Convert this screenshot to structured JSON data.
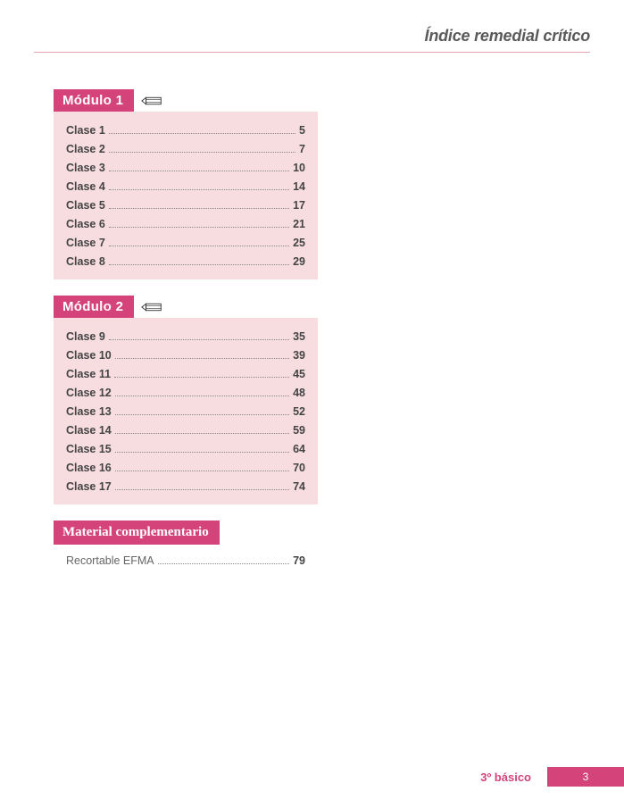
{
  "header_title": "Índice remedial crítico",
  "colors": {
    "accent": "#d4447a",
    "module_bg": "#f7dce0",
    "rule": "#e3a8b3",
    "text": "#4a4a4a",
    "header_text": "#5a5a5a"
  },
  "modules": [
    {
      "title": "Módulo 1",
      "items": [
        {
          "label": "Clase 1",
          "page": "5"
        },
        {
          "label": "Clase 2",
          "page": "7"
        },
        {
          "label": "Clase 3",
          "page": "10"
        },
        {
          "label": "Clase 4",
          "page": "14"
        },
        {
          "label": "Clase 5",
          "page": "17"
        },
        {
          "label": "Clase 6",
          "page": "21"
        },
        {
          "label": "Clase 7",
          "page": "25"
        },
        {
          "label": "Clase 8",
          "page": "29"
        }
      ]
    },
    {
      "title": "Módulo 2",
      "items": [
        {
          "label": "Clase 9",
          "page": "35"
        },
        {
          "label": "Clase 10",
          "page": "39"
        },
        {
          "label": "Clase 11",
          "page": "45"
        },
        {
          "label": "Clase 12",
          "page": "48"
        },
        {
          "label": "Clase 13",
          "page": "52"
        },
        {
          "label": "Clase 14",
          "page": "59"
        },
        {
          "label": "Clase 15",
          "page": "64"
        },
        {
          "label": "Clase 16",
          "page": "70"
        },
        {
          "label": "Clase 17",
          "page": "74"
        }
      ]
    }
  ],
  "material": {
    "title": "Material complementario",
    "items": [
      {
        "label": "Recortable EFMA",
        "page": "79"
      }
    ]
  },
  "footer": {
    "grade": "3º básico",
    "page_number": "3"
  }
}
